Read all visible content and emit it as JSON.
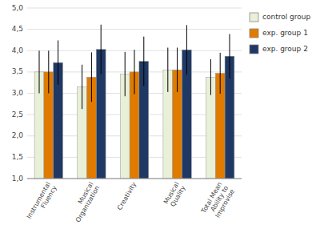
{
  "chart_data": {
    "type": "bar",
    "categories": [
      "Instrumental\nFluency",
      "Musical\nOrganization",
      "Creativity",
      "Musical\nQuality",
      "Total Mean\nAbility to\nImprovise"
    ],
    "series": [
      {
        "name": "control group",
        "color": "#e8f0d8",
        "values": [
          3.5,
          3.15,
          3.45,
          3.55,
          3.38
        ],
        "errors": [
          0.5,
          0.52,
          0.52,
          0.52,
          0.42
        ]
      },
      {
        "name": "exp. group 1",
        "color": "#e07b00",
        "values": [
          3.5,
          3.38,
          3.5,
          3.55,
          3.47
        ],
        "errors": [
          0.5,
          0.58,
          0.52,
          0.52,
          0.48
        ]
      },
      {
        "name": "exp. group 2",
        "color": "#1f3864",
        "values": [
          3.72,
          4.03,
          3.75,
          4.02,
          3.87
        ],
        "errors": [
          0.52,
          0.58,
          0.58,
          0.58,
          0.52
        ]
      }
    ],
    "ylim": [
      1.0,
      5.0
    ],
    "yticks": [
      {
        "value": 1.0,
        "label": "1,0"
      },
      {
        "value": 1.5,
        "label": "1,5"
      },
      {
        "value": 2.0,
        "label": "2,0"
      },
      {
        "value": 2.5,
        "label": "2,5"
      },
      {
        "value": 3.0,
        "label": "3,0"
      },
      {
        "value": 3.5,
        "label": "3,5"
      },
      {
        "value": 4.0,
        "label": "4,0"
      },
      {
        "value": 4.5,
        "label": "4,5"
      },
      {
        "value": 5.0,
        "label": "5,0"
      }
    ],
    "grid": true,
    "legend": "right"
  }
}
